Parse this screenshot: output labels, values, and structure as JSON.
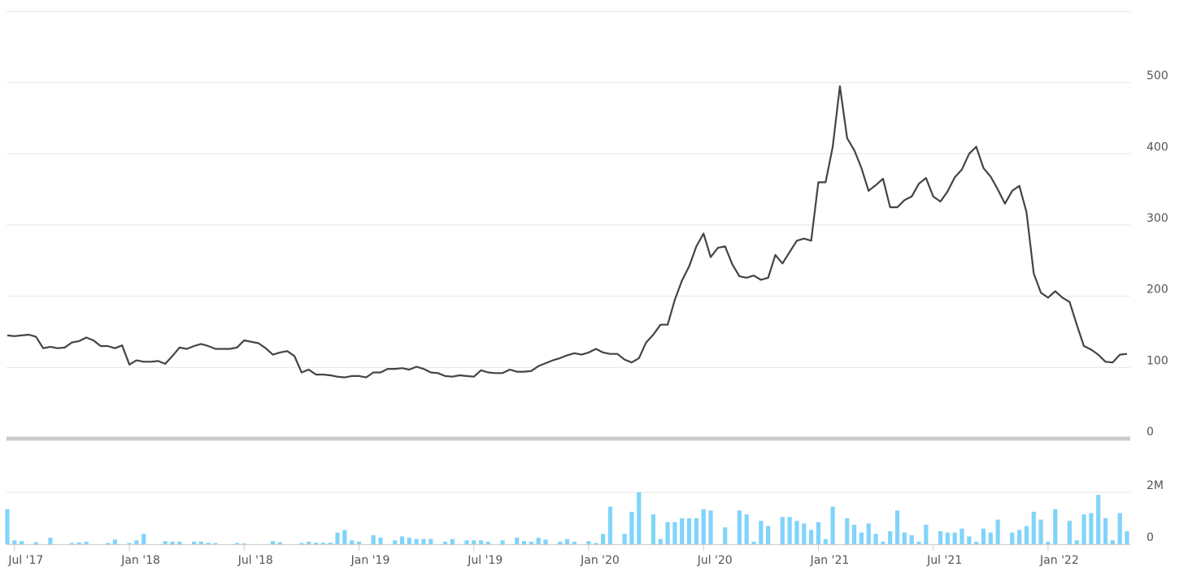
{
  "chart_data": {
    "type": "line",
    "categories": [
      null,
      "Jul '17",
      null,
      null,
      null,
      null,
      null,
      null,
      null,
      null,
      null,
      null,
      null,
      null,
      null,
      null,
      null,
      "Jan '18",
      null,
      null,
      null,
      null,
      null,
      null,
      null,
      null,
      null,
      null,
      null,
      null,
      null,
      null,
      null,
      "Jul '18",
      null,
      null,
      null,
      null,
      null,
      null,
      null,
      null,
      null,
      null,
      null,
      null,
      null,
      null,
      null,
      "Jan '19",
      null,
      null,
      null,
      null,
      null,
      null,
      null,
      null,
      null,
      null,
      null,
      null,
      null,
      null,
      null,
      "Jul '19",
      null,
      null,
      null,
      null,
      null,
      null,
      null,
      null,
      null,
      null,
      null,
      null,
      null,
      null,
      null,
      "Jan '20",
      null,
      null,
      null,
      null,
      null,
      null,
      null,
      null,
      null,
      null,
      null,
      null,
      null,
      null,
      null,
      "Jul '20",
      null,
      null,
      null,
      null,
      null,
      null,
      null,
      null,
      null,
      null,
      null,
      null,
      null,
      null,
      null,
      "Jan '21",
      null,
      null,
      null,
      null,
      null,
      null,
      null,
      null,
      null,
      null,
      null,
      null,
      null,
      null,
      null,
      "Jul '21",
      null,
      null,
      null,
      null,
      null,
      null,
      null,
      null,
      null,
      null,
      null,
      null,
      null,
      null,
      null,
      "Jan '22",
      null,
      null,
      null,
      null,
      null,
      null,
      null,
      null,
      null,
      null,
      null
    ],
    "series": [
      {
        "type": "line",
        "color": "#444444",
        "values": [
          145,
          144,
          145,
          146,
          143,
          127,
          129,
          127,
          128,
          135,
          137,
          142,
          138,
          130,
          130,
          127,
          131,
          104,
          110,
          108,
          108,
          109,
          105,
          116,
          128,
          126,
          130,
          133,
          130,
          126,
          126,
          126,
          128,
          138,
          136,
          134,
          127,
          118,
          121,
          123,
          116,
          93,
          97,
          90,
          90,
          89,
          87,
          86,
          88,
          88,
          86,
          93,
          93,
          98,
          98,
          99,
          97,
          101,
          98,
          93,
          92,
          88,
          87,
          89,
          88,
          87,
          96,
          93,
          92,
          92,
          97,
          94,
          94,
          95,
          102,
          106,
          110,
          113,
          117,
          120,
          118,
          121,
          126,
          121,
          119,
          119,
          111,
          107,
          113,
          135,
          146,
          160,
          160,
          195,
          222,
          242,
          270,
          288,
          255,
          268,
          270,
          245,
          228,
          226,
          229,
          223,
          226,
          258,
          246,
          262,
          278,
          281,
          278,
          360,
          360,
          410,
          495,
          422,
          405,
          380,
          348,
          356,
          365,
          325,
          325,
          335,
          340,
          358,
          366,
          340,
          333,
          347,
          367,
          378,
          400,
          410,
          380,
          368,
          350,
          330,
          348,
          355,
          318,
          232,
          205,
          198,
          207,
          198,
          192,
          160,
          130,
          125,
          118,
          108,
          107,
          118,
          119
        ]
      },
      {
        "type": "bar",
        "axis": "y2",
        "color": "#80d4fa",
        "values": [
          1350000,
          150000,
          120000,
          null,
          80000,
          null,
          250000,
          null,
          null,
          50000,
          70000,
          100000,
          null,
          null,
          50000,
          180000,
          null,
          50000,
          150000,
          400000,
          null,
          null,
          120000,
          100000,
          100000,
          null,
          100000,
          100000,
          60000,
          50000,
          null,
          null,
          50000,
          30000,
          null,
          null,
          null,
          120000,
          80000,
          null,
          null,
          50000,
          100000,
          60000,
          60000,
          60000,
          450000,
          550000,
          150000,
          100000,
          null,
          350000,
          250000,
          null,
          150000,
          300000,
          250000,
          200000,
          200000,
          200000,
          null,
          100000,
          200000,
          null,
          150000,
          150000,
          150000,
          100000,
          null,
          150000,
          null,
          250000,
          120000,
          100000,
          250000,
          180000,
          null,
          100000,
          200000,
          100000,
          null,
          120000,
          50000,
          400000,
          1450000,
          null,
          400000,
          1250000,
          2000000,
          null,
          1150000,
          200000,
          850000,
          850000,
          1000000,
          1000000,
          1000000,
          1350000,
          1300000,
          null,
          650000,
          null,
          1300000,
          1150000,
          100000,
          900000,
          700000,
          null,
          1050000,
          1050000,
          900000,
          800000,
          550000,
          850000,
          200000,
          1450000,
          null,
          1000000,
          750000,
          450000,
          800000,
          400000,
          100000,
          500000,
          1300000,
          450000,
          350000,
          100000,
          750000,
          null,
          500000,
          450000,
          450000,
          600000,
          300000,
          100000,
          600000,
          450000,
          950000,
          null,
          450000,
          550000,
          700000,
          1250000,
          950000,
          100000,
          1350000,
          null,
          900000,
          150000,
          1150000,
          1200000,
          1900000,
          1000000,
          150000,
          1200000,
          500000
        ]
      }
    ],
    "ylim": [
      0,
      600
    ],
    "yticks": [
      0,
      100,
      200,
      300,
      400,
      500
    ],
    "y2lim": [
      0,
      2000000
    ],
    "y2ticks": [
      0,
      {
        "value": 2000000,
        "label": "2M"
      }
    ],
    "grid": true
  }
}
